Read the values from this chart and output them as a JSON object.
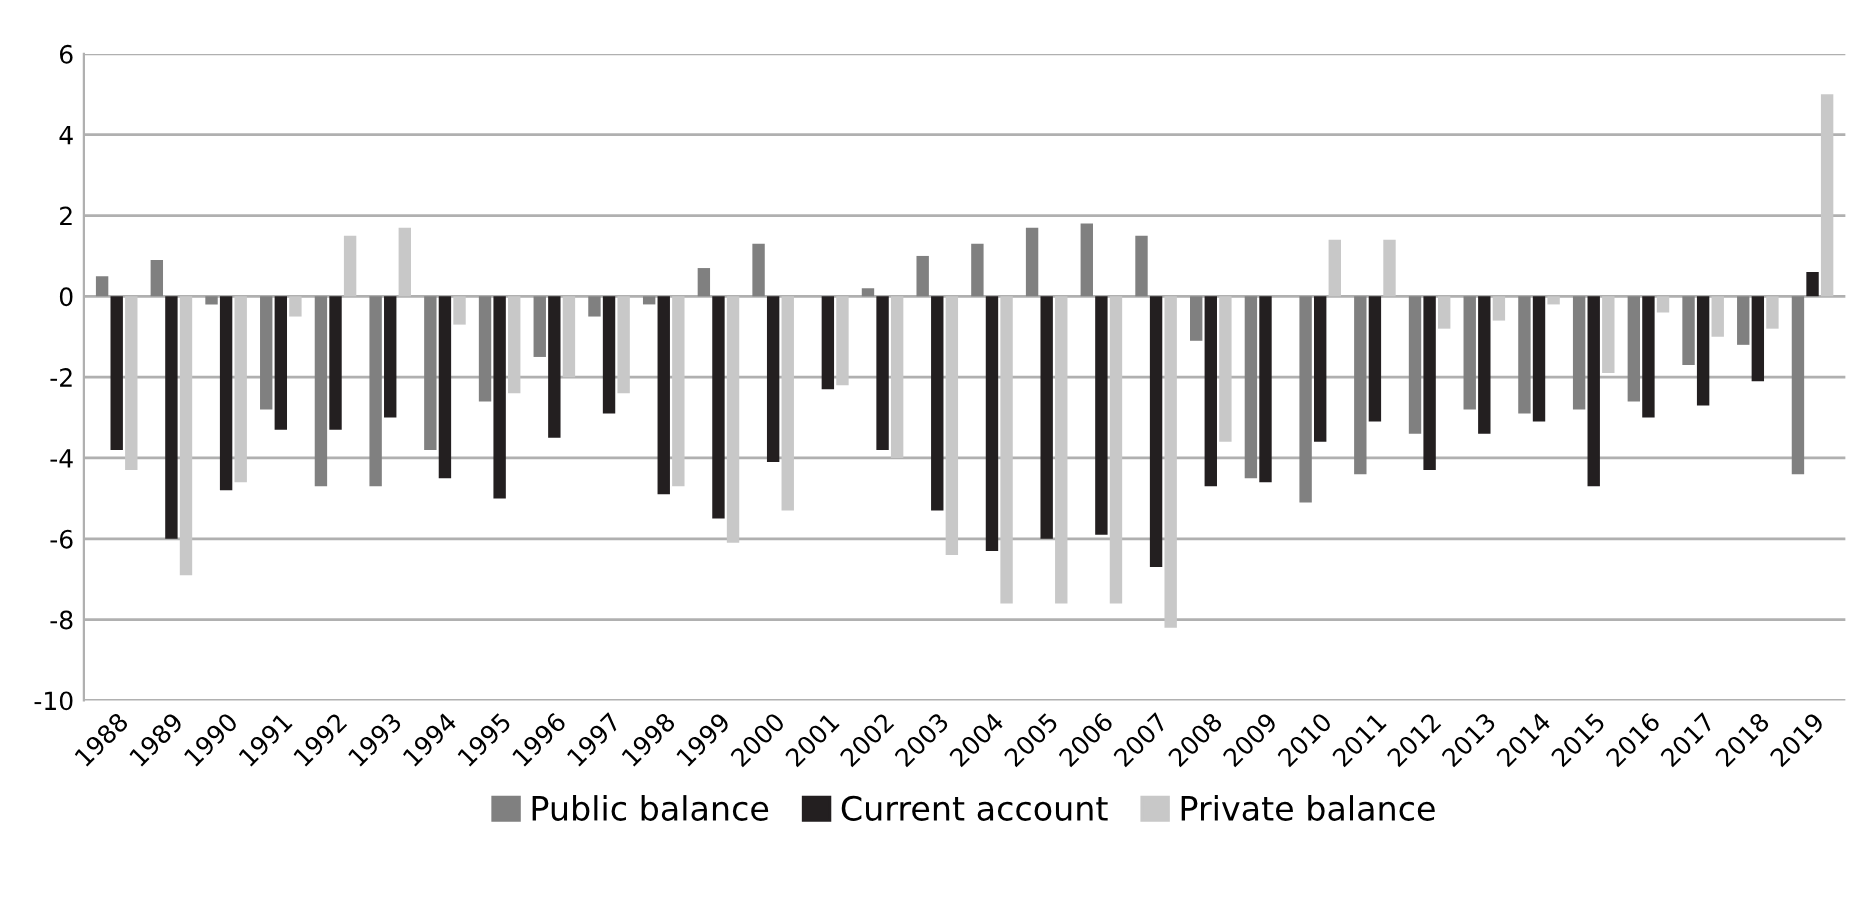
{
  "chart_data": {
    "type": "bar",
    "categories": [
      "1988",
      "1989",
      "1990",
      "1991",
      "1992",
      "1993",
      "1994",
      "1995",
      "1996",
      "1997",
      "1998",
      "1999",
      "2000",
      "2001",
      "2002",
      "2003",
      "2004",
      "2005",
      "2006",
      "2007",
      "2008",
      "2009",
      "2010",
      "2011",
      "2012",
      "2013",
      "2014",
      "2015",
      "2016",
      "2017",
      "2018",
      "2019"
    ],
    "series": [
      {
        "name": "Public balance",
        "color": "#808080",
        "values": [
          0.5,
          0.9,
          -0.2,
          -2.8,
          -4.7,
          -4.7,
          -3.8,
          -2.6,
          -1.5,
          -0.5,
          -0.2,
          0.7,
          1.3,
          0.0,
          0.2,
          1.0,
          1.3,
          1.7,
          1.8,
          1.5,
          -1.1,
          -4.5,
          -5.1,
          -4.4,
          -3.4,
          -2.8,
          -2.9,
          -2.8,
          -2.6,
          -1.7,
          -1.2,
          -4.4
        ]
      },
      {
        "name": "Current account",
        "color": "#231f20",
        "values": [
          -3.8,
          -6.0,
          -4.8,
          -3.3,
          -3.3,
          -3.0,
          -4.5,
          -5.0,
          -3.5,
          -2.9,
          -4.9,
          -5.5,
          -4.1,
          -2.3,
          -3.8,
          -5.3,
          -6.3,
          -6.0,
          -5.9,
          -6.7,
          -4.7,
          -4.6,
          -3.6,
          -3.1,
          -4.3,
          -3.4,
          -3.1,
          -4.7,
          -3.0,
          -2.7,
          -2.1,
          0.6
        ]
      },
      {
        "name": "Private balance",
        "color": "#c8c8c8",
        "values": [
          -4.3,
          -6.9,
          -4.6,
          -0.5,
          1.5,
          1.7,
          -0.7,
          -2.4,
          -2.0,
          -2.4,
          -4.7,
          -6.1,
          -5.3,
          -2.2,
          -4.0,
          -6.4,
          -7.6,
          -7.6,
          -7.6,
          -8.2,
          -3.6,
          0.0,
          1.4,
          1.4,
          -0.8,
          -0.6,
          -0.2,
          -1.9,
          -0.4,
          -1.0,
          -0.8,
          5.0
        ]
      }
    ],
    "ylim": [
      -10,
      6
    ],
    "yticks": [
      -10,
      -8,
      -6,
      -4,
      -2,
      0,
      2,
      4,
      6
    ],
    "grid": "y",
    "legend": "bottom"
  }
}
